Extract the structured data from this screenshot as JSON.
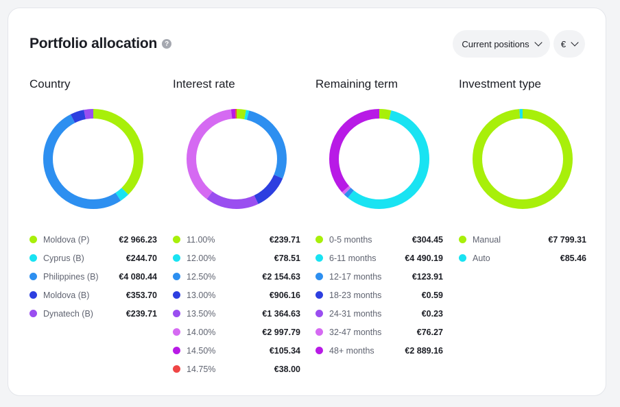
{
  "header": {
    "title": "Portfolio allocation",
    "help_label": "?"
  },
  "filters": {
    "positions_label": "Current positions",
    "currency_label": "€"
  },
  "sections": [
    {
      "title": "Country",
      "items": [
        {
          "label": "Moldova (P)",
          "value": "€2 966.23",
          "amount": 2966.23,
          "color": "#a8ef0a"
        },
        {
          "label": "Cyprus (B)",
          "value": "€244.70",
          "amount": 244.7,
          "color": "#19e3f2"
        },
        {
          "label": "Philippines (B)",
          "value": "€4 080.44",
          "amount": 4080.44,
          "color": "#2d8ff0"
        },
        {
          "label": "Moldova (B)",
          "value": "€353.70",
          "amount": 353.7,
          "color": "#2d3fe0"
        },
        {
          "label": "Dynatech (B)",
          "value": "€239.71",
          "amount": 239.71,
          "color": "#9a4ef0"
        }
      ]
    },
    {
      "title": "Interest rate",
      "items": [
        {
          "label": "11.00%",
          "value": "€239.71",
          "amount": 239.71,
          "color": "#a8ef0a"
        },
        {
          "label": "12.00%",
          "value": "€78.51",
          "amount": 78.51,
          "color": "#19e3f2"
        },
        {
          "label": "12.50%",
          "value": "€2 154.63",
          "amount": 2154.63,
          "color": "#2d8ff0"
        },
        {
          "label": "13.00%",
          "value": "€906.16",
          "amount": 906.16,
          "color": "#2d3fe0"
        },
        {
          "label": "13.50%",
          "value": "€1 364.63",
          "amount": 1364.63,
          "color": "#9a4ef0"
        },
        {
          "label": "14.00%",
          "value": "€2 997.79",
          "amount": 2997.79,
          "color": "#d56af2"
        },
        {
          "label": "14.50%",
          "value": "€105.34",
          "amount": 105.34,
          "color": "#b81ae6"
        },
        {
          "label": "14.75%",
          "value": "€38.00",
          "amount": 38.0,
          "color": "#ef4545"
        }
      ]
    },
    {
      "title": "Remaining term",
      "items": [
        {
          "label": "0-5 months",
          "value": "€304.45",
          "amount": 304.45,
          "color": "#a8ef0a"
        },
        {
          "label": "6-11 months",
          "value": "€4 490.19",
          "amount": 4490.19,
          "color": "#19e3f2"
        },
        {
          "label": "12-17 months",
          "value": "€123.91",
          "amount": 123.91,
          "color": "#2d8ff0"
        },
        {
          "label": "18-23 months",
          "value": "€0.59",
          "amount": 0.59,
          "color": "#2d3fe0"
        },
        {
          "label": "24-31 months",
          "value": "€0.23",
          "amount": 0.23,
          "color": "#9a4ef0"
        },
        {
          "label": "32-47 months",
          "value": "€76.27",
          "amount": 76.27,
          "color": "#d56af2"
        },
        {
          "label": "48+ months",
          "value": "€2 889.16",
          "amount": 2889.16,
          "color": "#b81ae6"
        }
      ]
    },
    {
      "title": "Investment type",
      "items": [
        {
          "label": "Manual",
          "value": "€7 799.31",
          "amount": 7799.31,
          "color": "#a8ef0a"
        },
        {
          "label": "Auto",
          "value": "€85.46",
          "amount": 85.46,
          "color": "#19e3f2"
        }
      ]
    }
  ],
  "chart_data": [
    {
      "type": "pie",
      "title": "Country",
      "categories": [
        "Moldova (P)",
        "Cyprus (B)",
        "Philippines (B)",
        "Moldova (B)",
        "Dynatech (B)"
      ],
      "values": [
        2966.23,
        244.7,
        4080.44,
        353.7,
        239.71
      ]
    },
    {
      "type": "pie",
      "title": "Interest rate",
      "categories": [
        "11.00%",
        "12.00%",
        "12.50%",
        "13.00%",
        "13.50%",
        "14.00%",
        "14.50%",
        "14.75%"
      ],
      "values": [
        239.71,
        78.51,
        2154.63,
        906.16,
        1364.63,
        2997.79,
        105.34,
        38.0
      ]
    },
    {
      "type": "pie",
      "title": "Remaining term",
      "categories": [
        "0-5 months",
        "6-11 months",
        "12-17 months",
        "18-23 months",
        "24-31 months",
        "32-47 months",
        "48+ months"
      ],
      "values": [
        304.45,
        4490.19,
        123.91,
        0.59,
        0.23,
        76.27,
        2889.16
      ]
    },
    {
      "type": "pie",
      "title": "Investment type",
      "categories": [
        "Manual",
        "Auto"
      ],
      "values": [
        7799.31,
        85.46
      ]
    }
  ]
}
